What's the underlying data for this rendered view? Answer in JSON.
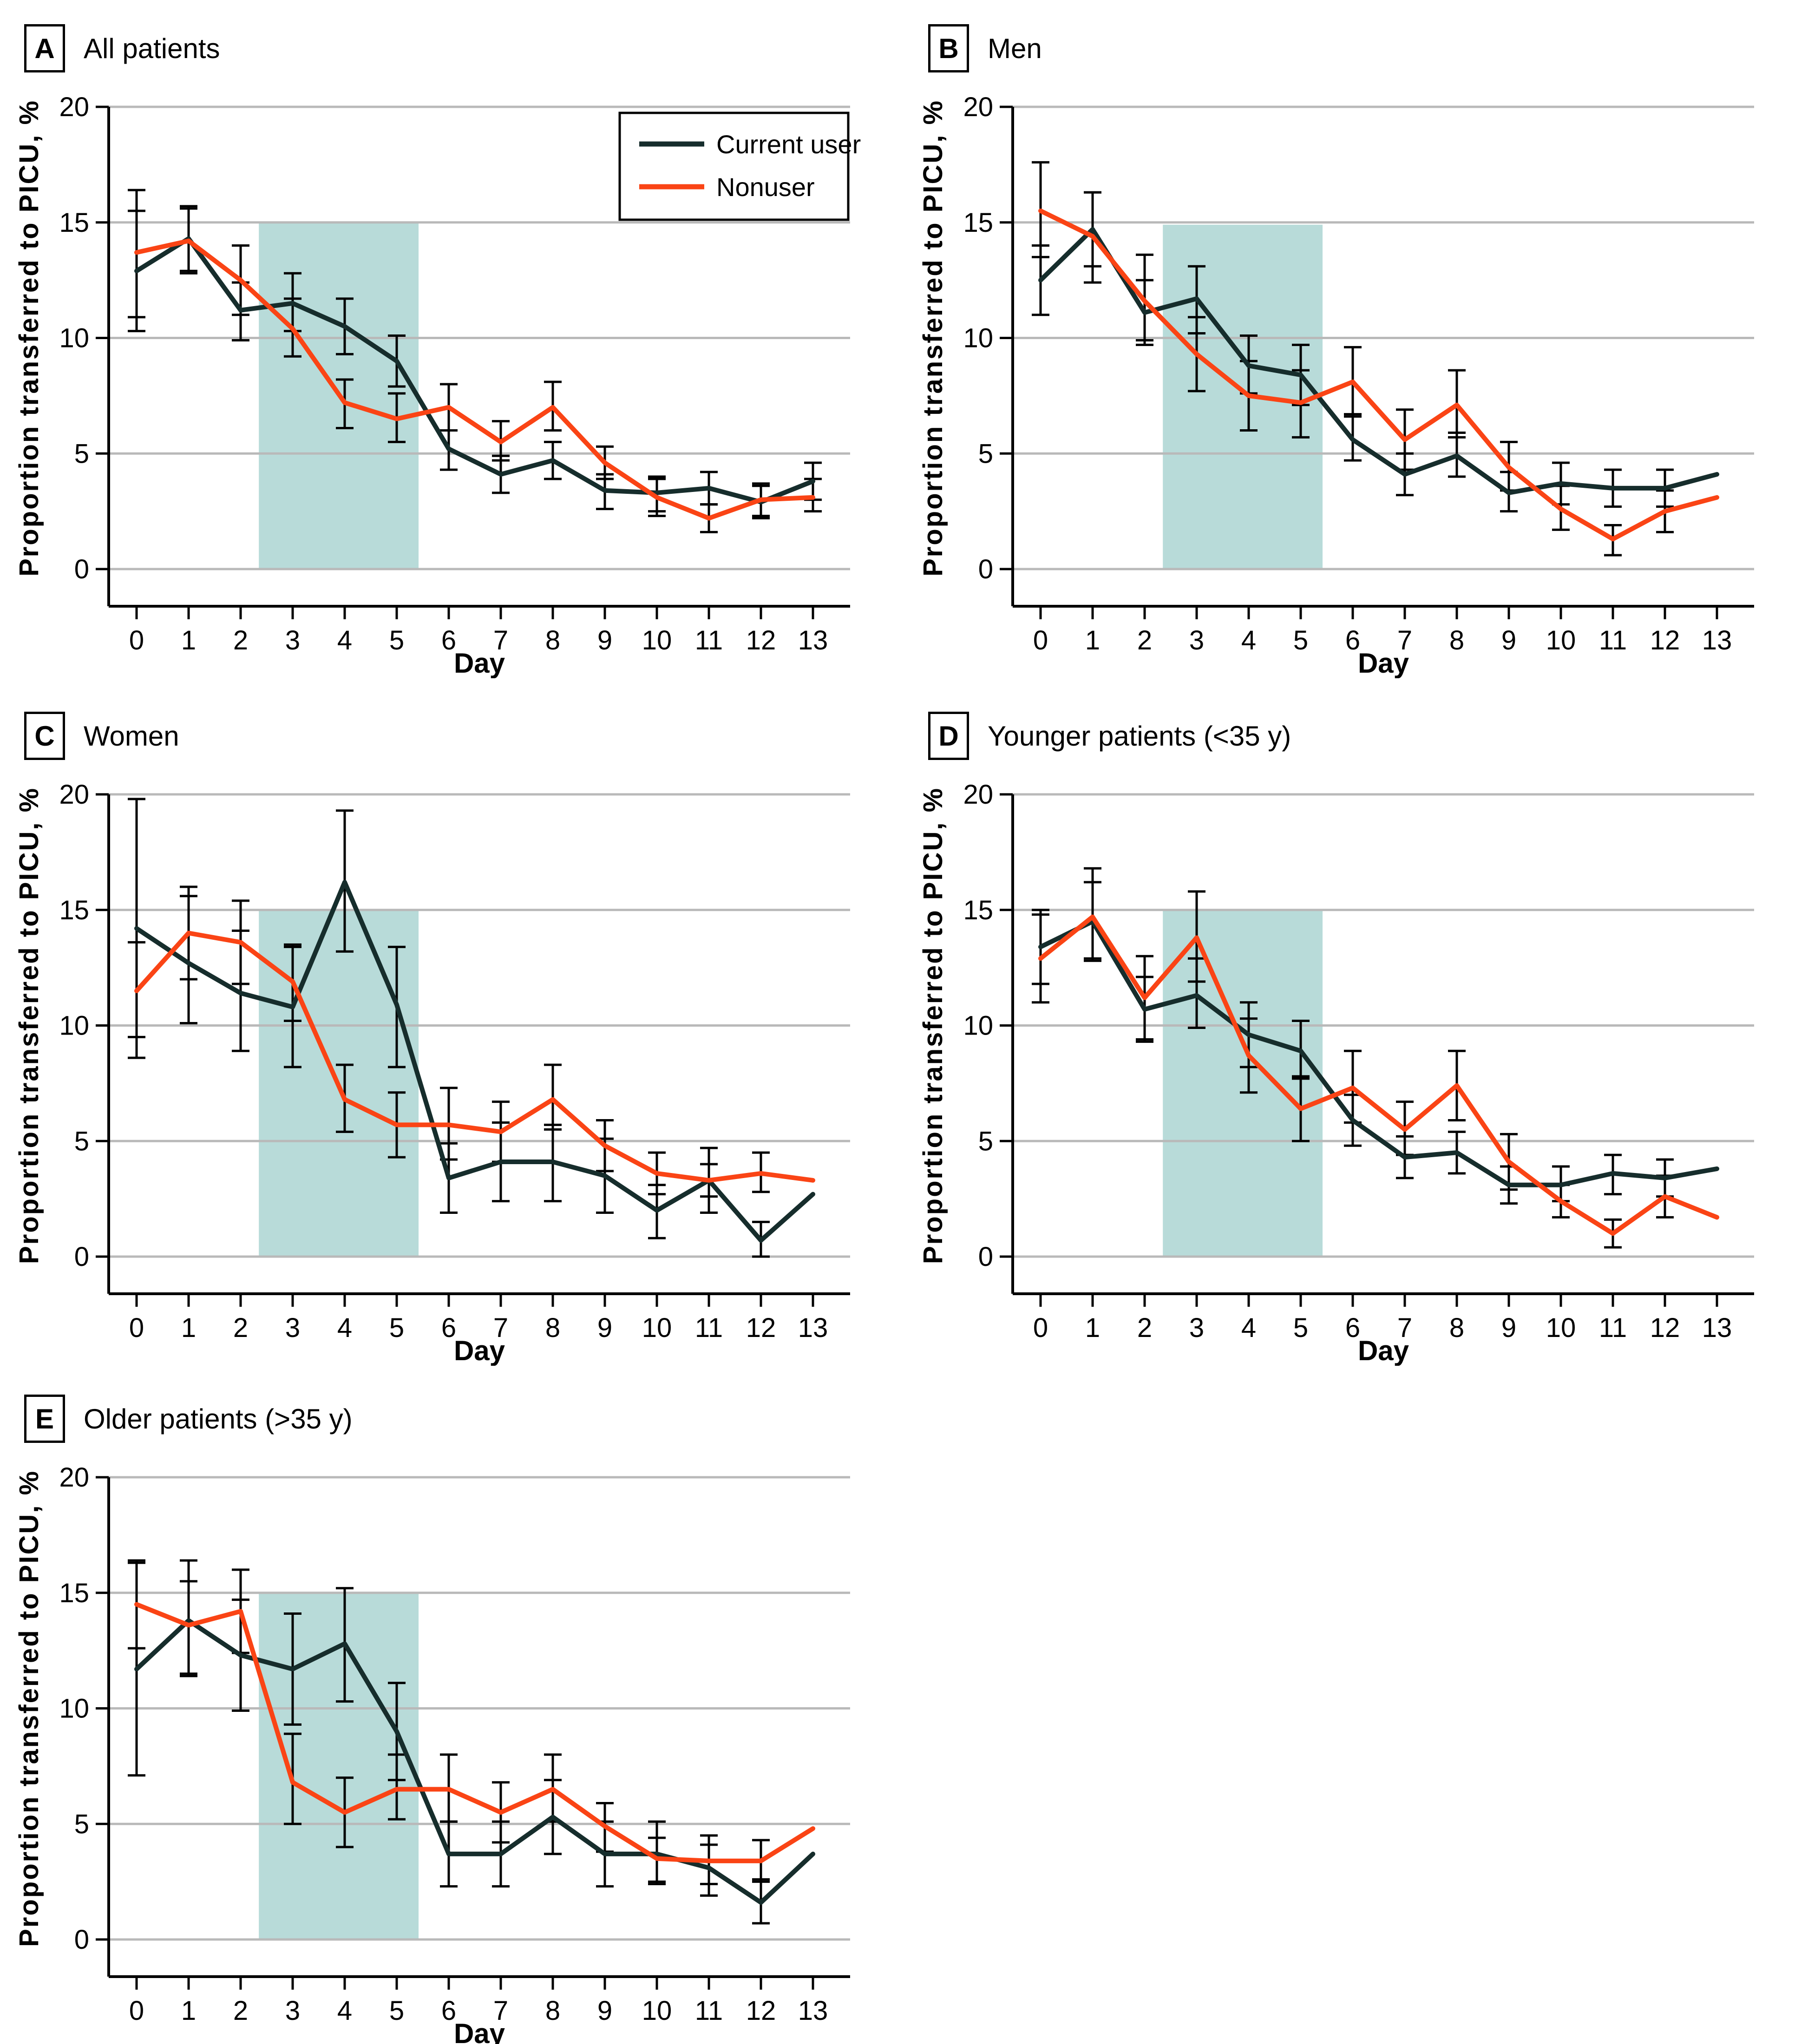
{
  "figure": {
    "colors": {
      "current_user": "#162d2c",
      "nonuser": "#fa4415",
      "shaded_band": "#b8dbd9",
      "gridline": "#b9b9b9",
      "axis": "#000000",
      "error_bar": "#000000"
    },
    "legend": {
      "items": [
        "Current user",
        "Nonuser"
      ]
    }
  },
  "chart_data": [
    {
      "type": "line",
      "panel": "A",
      "title": "All patients",
      "xlabel": "Day",
      "ylabel": "Proportion transferred to PICU, %",
      "x": [
        0,
        1,
        2,
        3,
        4,
        5,
        6,
        7,
        8,
        9,
        10,
        11,
        12,
        13
      ],
      "ylim": [
        0,
        20
      ],
      "yticks": [
        0,
        5,
        10,
        15,
        20
      ],
      "grid": true,
      "legend_position": "upper-right",
      "show_legend": true,
      "shaded_region": {
        "x0": 2.35,
        "x1": 5.42,
        "y0": 0,
        "y1": 15
      },
      "series": [
        {
          "name": "Current user",
          "color": "#162d2c",
          "values": [
            12.9,
            14.3,
            11.2,
            11.5,
            10.5,
            9.0,
            5.2,
            4.1,
            4.7,
            3.4,
            3.3,
            3.5,
            2.9,
            3.8
          ],
          "err_lo": [
            10.3,
            12.9,
            9.9,
            10.3,
            9.3,
            7.9,
            4.3,
            3.3,
            3.9,
            2.6,
            2.5,
            2.8,
            2.2,
            3.0
          ],
          "err_hi": [
            15.5,
            15.7,
            12.4,
            12.8,
            11.7,
            10.1,
            6.0,
            4.9,
            5.5,
            4.1,
            4.0,
            4.2,
            3.6,
            4.6
          ]
        },
        {
          "name": "Nonuser",
          "color": "#fa4415",
          "values": [
            13.7,
            14.2,
            12.5,
            10.4,
            7.2,
            6.5,
            7.0,
            5.5,
            7.0,
            4.6,
            3.1,
            2.2,
            3.0,
            3.1
          ],
          "err_lo": [
            10.9,
            12.8,
            11.0,
            9.2,
            6.1,
            5.5,
            6.0,
            4.7,
            6.0,
            3.9,
            2.3,
            1.6,
            2.3,
            2.5
          ],
          "err_hi": [
            16.4,
            15.6,
            14.0,
            11.7,
            8.2,
            7.6,
            8.0,
            6.4,
            8.1,
            5.3,
            3.9,
            2.8,
            3.7,
            3.9
          ]
        }
      ]
    },
    {
      "type": "line",
      "panel": "B",
      "title": "Men",
      "xlabel": "Day",
      "ylabel": "Proportion transferred to PICU, %",
      "x": [
        0,
        1,
        2,
        3,
        4,
        5,
        6,
        7,
        8,
        9,
        10,
        11,
        12,
        13
      ],
      "ylim": [
        0,
        20
      ],
      "yticks": [
        0,
        5,
        10,
        15,
        20
      ],
      "grid": true,
      "show_legend": false,
      "shaded_region": {
        "x0": 2.35,
        "x1": 5.42,
        "y0": 0,
        "y1": 14.9
      },
      "series": [
        {
          "name": "Current user",
          "color": "#162d2c",
          "values": [
            12.5,
            14.7,
            11.1,
            11.7,
            8.8,
            8.4,
            5.6,
            4.1,
            4.9,
            3.3,
            3.7,
            3.5,
            3.5,
            4.1
          ],
          "err_lo": [
            11.0,
            13.1,
            9.7,
            10.2,
            7.6,
            7.1,
            4.7,
            3.2,
            4.0,
            2.5,
            2.8,
            2.7,
            2.7,
            null
          ],
          "err_hi": [
            14.0,
            16.3,
            12.5,
            13.1,
            10.1,
            9.7,
            6.7,
            5.0,
            5.9,
            4.2,
            4.6,
            4.3,
            4.3,
            null
          ]
        },
        {
          "name": "Nonuser",
          "color": "#fa4415",
          "values": [
            15.5,
            14.4,
            11.6,
            9.3,
            7.5,
            7.2,
            8.1,
            5.6,
            7.1,
            4.4,
            2.6,
            1.3,
            2.5,
            3.1
          ],
          "err_lo": [
            13.5,
            12.4,
            9.9,
            7.7,
            6.0,
            5.7,
            6.6,
            4.3,
            5.7,
            3.4,
            1.7,
            0.6,
            1.6,
            null
          ],
          "err_hi": [
            17.6,
            16.3,
            13.6,
            10.9,
            9.0,
            8.6,
            9.6,
            6.9,
            8.6,
            5.5,
            3.6,
            1.9,
            3.4,
            null
          ]
        }
      ]
    },
    {
      "type": "line",
      "panel": "C",
      "title": "Women",
      "xlabel": "Day",
      "ylabel": "Proportion transferred to PICU, %",
      "x": [
        0,
        1,
        2,
        3,
        4,
        5,
        6,
        7,
        8,
        9,
        10,
        11,
        12,
        13
      ],
      "ylim": [
        0,
        20
      ],
      "yticks": [
        0,
        5,
        10,
        15,
        20
      ],
      "grid": true,
      "show_legend": false,
      "shaded_region": {
        "x0": 2.35,
        "x1": 5.42,
        "y0": 0,
        "y1": 15
      },
      "series": [
        {
          "name": "Current user",
          "color": "#162d2c",
          "values": [
            14.2,
            12.7,
            11.4,
            10.8,
            16.2,
            10.9,
            3.4,
            4.1,
            4.1,
            3.5,
            2.0,
            3.3,
            0.7,
            2.7
          ],
          "err_lo": [
            8.6,
            10.1,
            8.9,
            8.2,
            13.2,
            8.2,
            1.9,
            2.4,
            2.4,
            1.9,
            0.8,
            1.9,
            0.0,
            null
          ],
          "err_hi": [
            19.8,
            15.6,
            14.1,
            13.4,
            19.3,
            13.4,
            4.9,
            5.8,
            5.7,
            5.1,
            3.1,
            4.7,
            1.5,
            null
          ]
        },
        {
          "name": "Nonuser",
          "color": "#fa4415",
          "values": [
            11.5,
            14.0,
            13.6,
            11.9,
            6.8,
            5.7,
            5.7,
            5.4,
            6.8,
            4.8,
            3.6,
            3.3,
            3.6,
            3.3
          ],
          "err_lo": [
            9.5,
            12.0,
            11.8,
            10.2,
            5.4,
            4.3,
            4.2,
            4.1,
            5.5,
            3.7,
            2.7,
            2.6,
            2.8,
            null
          ],
          "err_hi": [
            13.6,
            16.0,
            15.4,
            13.5,
            8.3,
            7.1,
            7.3,
            6.7,
            8.3,
            5.9,
            4.5,
            4.0,
            4.5,
            null
          ]
        }
      ]
    },
    {
      "type": "line",
      "panel": "D",
      "title": "Younger patients (<35 y)",
      "xlabel": "Day",
      "ylabel": "Proportion transferred to PICU, %",
      "x": [
        0,
        1,
        2,
        3,
        4,
        5,
        6,
        7,
        8,
        9,
        10,
        11,
        12,
        13
      ],
      "ylim": [
        0,
        20
      ],
      "yticks": [
        0,
        5,
        10,
        15,
        20
      ],
      "grid": true,
      "show_legend": false,
      "shaded_region": {
        "x0": 2.35,
        "x1": 5.42,
        "y0": 0,
        "y1": 15
      },
      "series": [
        {
          "name": "Current user",
          "color": "#162d2c",
          "values": [
            13.4,
            14.5,
            10.7,
            11.3,
            9.6,
            8.9,
            5.9,
            4.3,
            4.5,
            3.1,
            3.1,
            3.6,
            3.4,
            3.8
          ],
          "err_lo": [
            11.8,
            12.8,
            9.4,
            9.9,
            8.2,
            7.7,
            4.8,
            3.4,
            3.6,
            2.3,
            2.4,
            2.7,
            2.6,
            null
          ],
          "err_hi": [
            15.0,
            16.2,
            12.1,
            12.9,
            11.0,
            10.2,
            7.0,
            5.2,
            5.4,
            3.9,
            3.9,
            4.4,
            4.2,
            null
          ]
        },
        {
          "name": "Nonuser",
          "color": "#fa4415",
          "values": [
            12.9,
            14.7,
            11.2,
            13.8,
            8.7,
            6.4,
            7.3,
            5.5,
            7.4,
            4.1,
            2.4,
            1.0,
            2.6,
            1.7
          ],
          "err_lo": [
            11.0,
            12.9,
            9.3,
            11.9,
            7.1,
            5.0,
            5.8,
            4.4,
            5.9,
            2.9,
            1.7,
            0.4,
            1.7,
            null
          ],
          "err_hi": [
            14.8,
            16.8,
            13.0,
            15.8,
            10.3,
            7.8,
            8.9,
            6.7,
            8.9,
            5.3,
            3.1,
            1.6,
            3.5,
            null
          ]
        }
      ]
    },
    {
      "type": "line",
      "panel": "E",
      "title": "Older patients (>35 y)",
      "xlabel": "Day",
      "ylabel": "Proportion transferred to PICU, %",
      "x": [
        0,
        1,
        2,
        3,
        4,
        5,
        6,
        7,
        8,
        9,
        10,
        11,
        12,
        13
      ],
      "ylim": [
        0,
        20
      ],
      "yticks": [
        0,
        5,
        10,
        15,
        20
      ],
      "grid": true,
      "show_legend": false,
      "shaded_region": {
        "x0": 2.35,
        "x1": 5.42,
        "y0": 0,
        "y1": 15
      },
      "series": [
        {
          "name": "Current user",
          "color": "#162d2c",
          "values": [
            11.7,
            13.8,
            12.3,
            11.7,
            12.8,
            9.0,
            3.7,
            3.7,
            5.3,
            3.7,
            3.7,
            3.1,
            1.6,
            3.7
          ],
          "err_lo": [
            7.1,
            11.4,
            9.9,
            9.3,
            10.3,
            6.9,
            2.3,
            2.3,
            3.7,
            2.3,
            2.4,
            1.9,
            0.7,
            null
          ],
          "err_hi": [
            16.3,
            16.4,
            14.7,
            14.1,
            15.2,
            11.1,
            5.1,
            5.1,
            6.9,
            5.1,
            5.1,
            4.1,
            2.6,
            null
          ]
        },
        {
          "name": "Nonuser",
          "color": "#fa4415",
          "values": [
            14.5,
            13.6,
            14.2,
            6.8,
            5.5,
            6.5,
            6.5,
            5.5,
            6.5,
            4.9,
            3.5,
            3.4,
            3.4,
            4.8
          ],
          "err_lo": [
            12.6,
            11.5,
            12.4,
            5.0,
            4.0,
            5.2,
            5.1,
            4.2,
            5.1,
            3.8,
            2.5,
            2.4,
            2.5,
            null
          ],
          "err_hi": [
            16.4,
            15.5,
            16.0,
            8.9,
            7.0,
            8.0,
            8.0,
            6.8,
            8.0,
            5.9,
            4.4,
            4.5,
            4.3,
            null
          ]
        }
      ]
    }
  ]
}
